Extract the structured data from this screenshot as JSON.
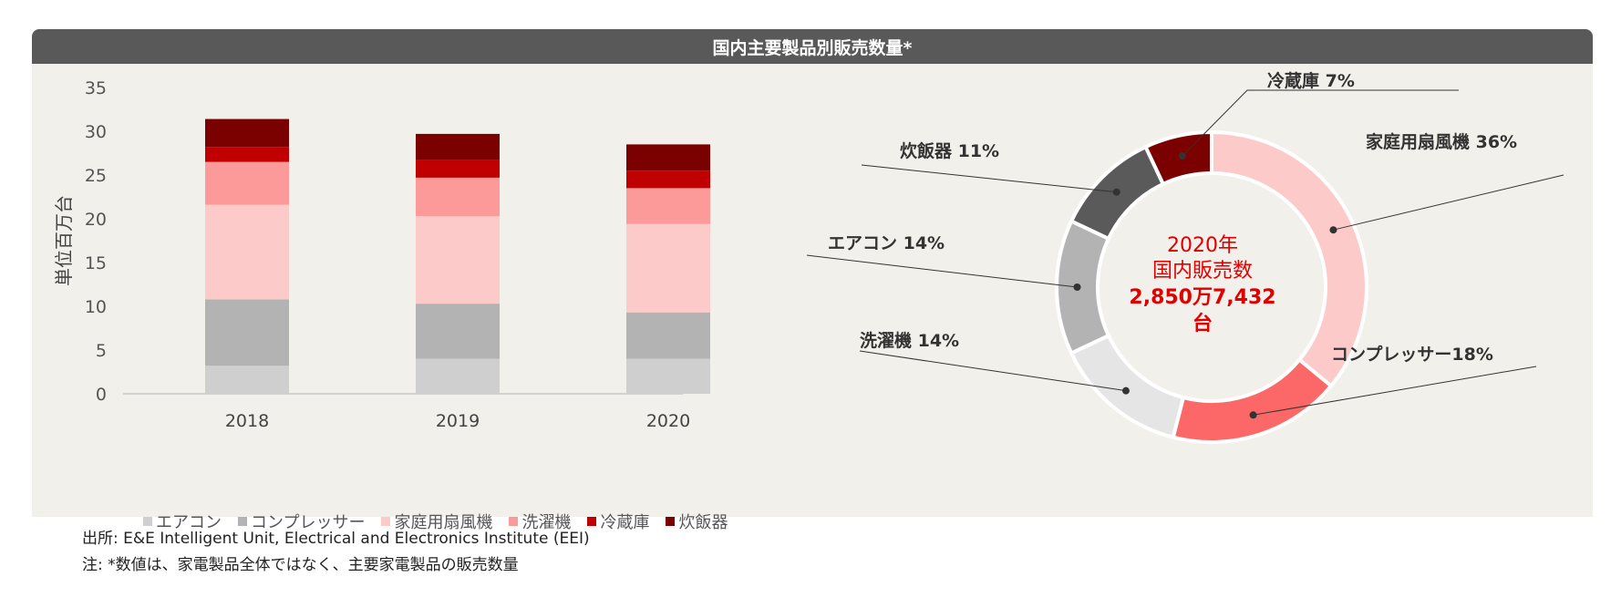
{
  "title": "国内主要製品別販売数量*",
  "chart_data": [
    {
      "type": "bar",
      "stacked": true,
      "categories": [
        "2018",
        "2019",
        "2020"
      ],
      "ylabel": "単位百万台",
      "ylim": [
        0,
        35
      ],
      "yticks": [
        0,
        5,
        10,
        15,
        20,
        25,
        30,
        35
      ],
      "series": [
        {
          "name": "エアコン",
          "color": "#cfcfcf",
          "values": [
            3.2,
            4.0,
            4.0
          ]
        },
        {
          "name": "コンプレッサー",
          "color": "#b3b3b3",
          "values": [
            7.6,
            6.3,
            5.3
          ]
        },
        {
          "name": "家庭用扇風機",
          "color": "#fdcaca",
          "values": [
            10.8,
            10.0,
            10.1
          ]
        },
        {
          "name": "洗濯機",
          "color": "#fc9a9a",
          "values": [
            4.9,
            4.4,
            4.1
          ]
        },
        {
          "name": "冷蔵庫",
          "color": "#c00000",
          "values": [
            1.7,
            2.0,
            2.0
          ]
        },
        {
          "name": "炊飯器",
          "color": "#7b0000",
          "values": [
            3.2,
            3.0,
            3.0
          ]
        }
      ],
      "legend_position": "bottom"
    },
    {
      "type": "pie",
      "donut": true,
      "center_text": [
        "2020年",
        "国内販売数",
        "2,850万7,432",
        "台"
      ],
      "slices": [
        {
          "label": "家庭用扇風機 36%",
          "value": 36,
          "color": "#fdcaca"
        },
        {
          "label": "コンプレッサー18%",
          "value": 18,
          "color": "#fc6868"
        },
        {
          "label": "洗濯機 14%",
          "value": 14,
          "color": "#e5e5e5"
        },
        {
          "label": "エアコン 14%",
          "value": 14,
          "color": "#b3b3b3"
        },
        {
          "label": "炊飯器 11%",
          "value": 11,
          "color": "#5a5a5a"
        },
        {
          "label": "冷蔵庫 7%",
          "value": 7,
          "color": "#7b0000"
        }
      ]
    }
  ],
  "source": {
    "line1": "出所: E&E Intelligent Unit, Electrical and Electronics Institute (EEI)",
    "line2": "注: *数値は、家電製品全体ではなく、主要家電製品の販売数量"
  }
}
